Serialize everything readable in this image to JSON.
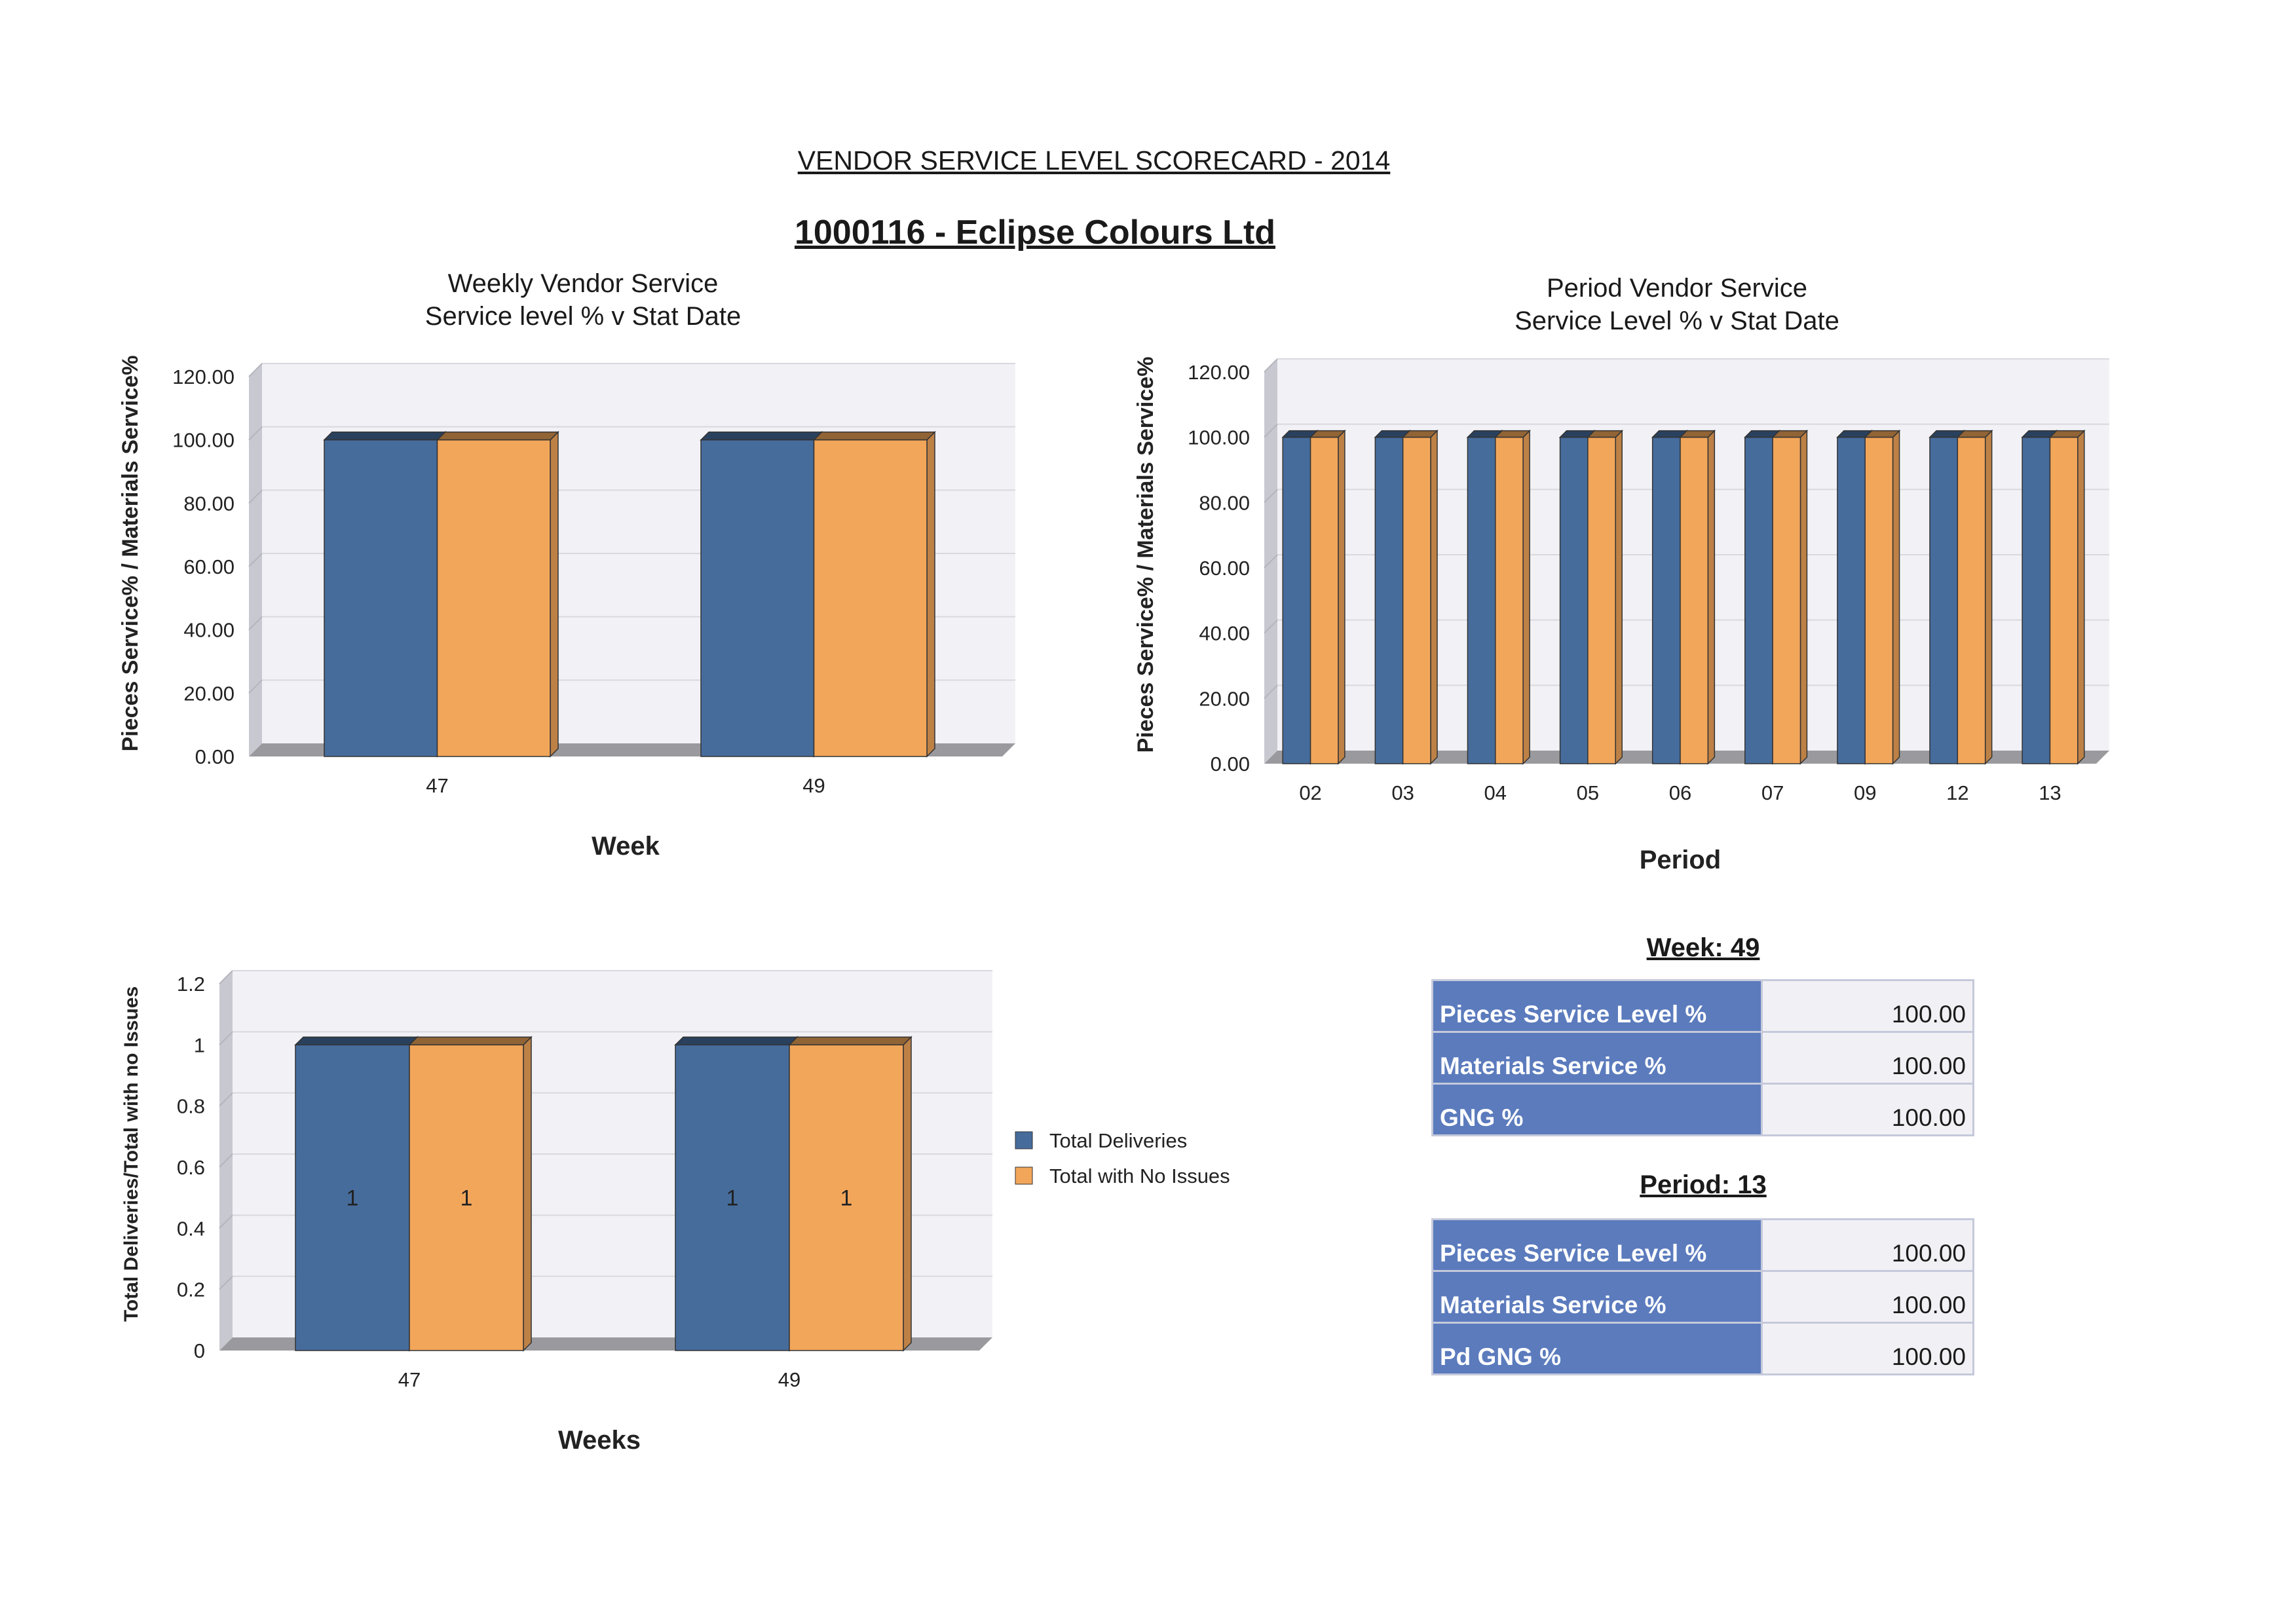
{
  "report": {
    "title": "VENDOR SERVICE LEVEL SCORECARD - 2014",
    "vendor": "1000116 - Eclipse Colours Ltd"
  },
  "colors": {
    "series1": "#466c9c",
    "series2": "#f2a65a",
    "plot_bg": "#f2f2f6",
    "grid": "#d8d8de"
  },
  "chart_data": [
    {
      "type": "bar",
      "title": "Weekly Vendor Service",
      "subtitle": "Service level % v Stat Date",
      "xlabel": "Week",
      "ylabel": "Pieces Service% / Materials Service%",
      "categories": [
        "47",
        "49"
      ],
      "series": [
        {
          "values": [
            100,
            100
          ]
        },
        {
          "values": [
            100,
            100
          ]
        }
      ],
      "ylim": [
        0,
        120
      ],
      "ytick_step": 20,
      "ytick_decimals": 2,
      "grid": true,
      "legend": "none"
    },
    {
      "type": "bar",
      "title": "Period Vendor Service",
      "subtitle": "Service Level % v Stat Date",
      "xlabel": "Period",
      "ylabel": "Pieces Service% / Materials Service%",
      "categories": [
        "02",
        "03",
        "04",
        "05",
        "06",
        "07",
        "09",
        "12",
        "13"
      ],
      "series": [
        {
          "values": [
            100,
            100,
            100,
            100,
            100,
            100,
            100,
            100,
            100
          ]
        },
        {
          "values": [
            100,
            100,
            100,
            100,
            100,
            100,
            100,
            100,
            100
          ]
        }
      ],
      "ylim": [
        0,
        120
      ],
      "ytick_step": 20,
      "ytick_decimals": 2,
      "grid": true,
      "legend": "none"
    },
    {
      "type": "bar",
      "title": "",
      "xlabel": "Weeks",
      "ylabel": "Total Deliveries/Total with no Issues",
      "categories": [
        "47",
        "49"
      ],
      "series": [
        {
          "name": "Total Deliveries",
          "values": [
            1,
            1
          ]
        },
        {
          "name": "Total with No Issues",
          "values": [
            1,
            1
          ]
        }
      ],
      "ylim": [
        0,
        1.2
      ],
      "ytick_step": 0.2,
      "ytick_decimals": 0,
      "data_labels": true,
      "grid": true,
      "legend": "right"
    }
  ],
  "week_summary": {
    "title": "Week:  49",
    "rows": [
      {
        "label": "Pieces Service Level %",
        "value": "100.00"
      },
      {
        "label": "Materials Service %",
        "value": "100.00"
      },
      {
        "label": "GNG %",
        "value": "100.00"
      }
    ]
  },
  "period_summary": {
    "title": "Period:  13",
    "rows": [
      {
        "label": "Pieces Service Level %",
        "value": "100.00"
      },
      {
        "label": "Materials Service %",
        "value": "100.00"
      },
      {
        "label": "Pd GNG %",
        "value": "100.00"
      }
    ]
  }
}
